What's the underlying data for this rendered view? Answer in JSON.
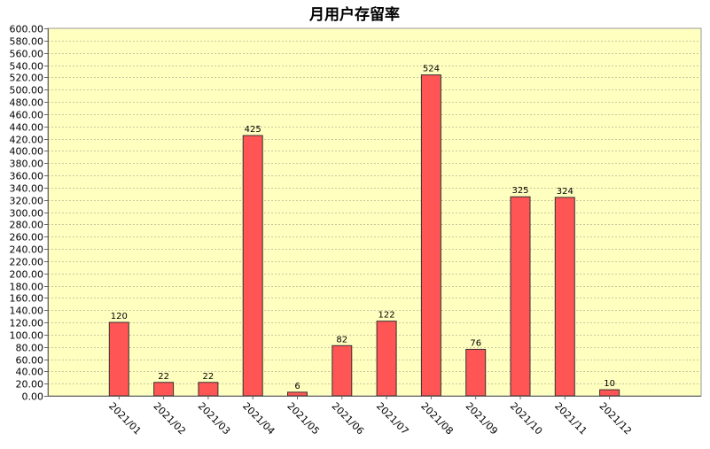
{
  "chart_data": {
    "type": "bar",
    "title": "月用户存留率",
    "categories": [
      "2021/01",
      "2021/02",
      "2021/03",
      "2021/04",
      "2021/05",
      "2021/06",
      "2021/07",
      "2021/08",
      "2021/09",
      "2021/10",
      "2021/11",
      "2021/12"
    ],
    "values": [
      120,
      22,
      22,
      425,
      6,
      82,
      122,
      524,
      76,
      325,
      324,
      10
    ],
    "data_labels": [
      "120",
      "22",
      "22",
      "425",
      "6",
      "82",
      "122",
      "524",
      "76",
      "325",
      "324",
      "10"
    ],
    "ylim": [
      0,
      600
    ],
    "y_tick_step": 20,
    "y_tick_decimals": 2,
    "grid": true,
    "legend": "none",
    "xlabel": "",
    "ylabel": "",
    "colors": {
      "bar": "#ff5555",
      "bar_border": "#333333",
      "plot_background": "#ffffc0",
      "grid": "#c8c8a0",
      "page_background": "#eef0f5"
    }
  }
}
